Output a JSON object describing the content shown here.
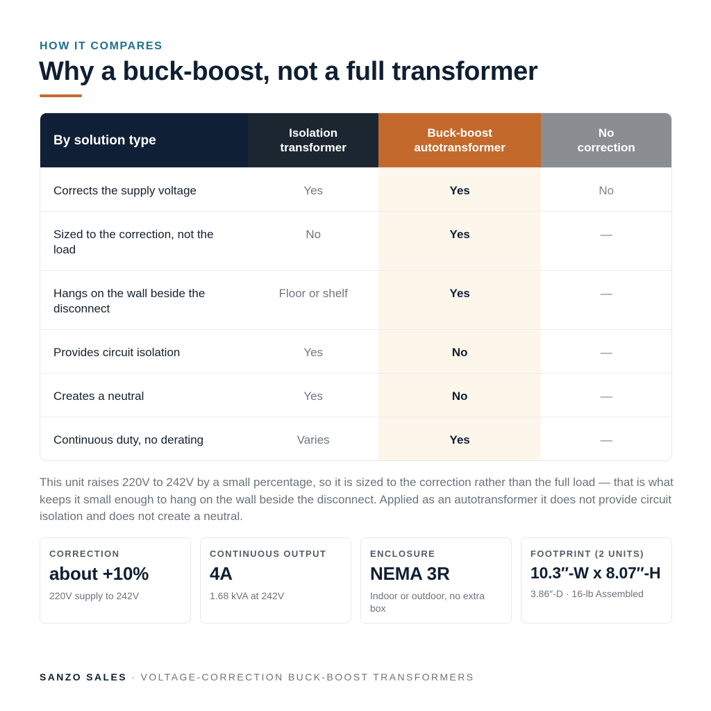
{
  "header": {
    "eyebrow": "HOW IT COMPARES",
    "title": "Why a buck-boost, not a full transformer"
  },
  "table": {
    "columns": [
      "By solution type",
      "Isolation\ntransformer",
      "Buck-boost\nautotransformer",
      "No\ncorrection"
    ],
    "rows": [
      {
        "label": "Corrects the supply voltage",
        "isolation": "Yes",
        "buckboost": "Yes",
        "none": "No"
      },
      {
        "label": "Sized to the correction, not the load",
        "isolation": "No",
        "buckboost": "Yes",
        "none": "—"
      },
      {
        "label": "Hangs on the wall beside the disconnect",
        "isolation": "Floor or shelf",
        "buckboost": "Yes",
        "none": "—"
      },
      {
        "label": "Provides circuit isolation",
        "isolation": "Yes",
        "buckboost": "No",
        "none": "—"
      },
      {
        "label": "Creates a neutral",
        "isolation": "Yes",
        "buckboost": "No",
        "none": "—"
      },
      {
        "label": "Continuous duty, no derating",
        "isolation": "Varies",
        "buckboost": "Yes",
        "none": "—"
      }
    ]
  },
  "note": "This unit raises 220V to 242V by a small percentage, so it is sized to the correction rather than the full load — that is what keeps it small enough to hang on the wall beside the disconnect. Applied as an autotransformer it does not provide circuit isolation and does not create a neutral.",
  "cards": [
    {
      "label": "CORRECTION",
      "value": "about +10%",
      "sub": "220V supply to 242V"
    },
    {
      "label": "CONTINUOUS OUTPUT",
      "value": "4A",
      "sub": "1.68 kVA at 242V"
    },
    {
      "label": "ENCLOSURE",
      "value": "NEMA 3R",
      "sub": "Indoor or outdoor, no extra box"
    },
    {
      "label": "FOOTPRINT (2 UNITS)",
      "value": "10.3″-W x 8.07″-H",
      "sub": "3.86″-D · 16-lb Assembled"
    }
  ],
  "footer": {
    "brand": "SANZO SALES",
    "separator": " · ",
    "tagline": "VOLTAGE-CORRECTION BUCK-BOOST TRANSFORMERS"
  },
  "colors": {
    "accent": "#c4692c",
    "navy": "#0f1f36",
    "teal": "#1f6f8e",
    "highlight_column": "#fdf6ea"
  }
}
